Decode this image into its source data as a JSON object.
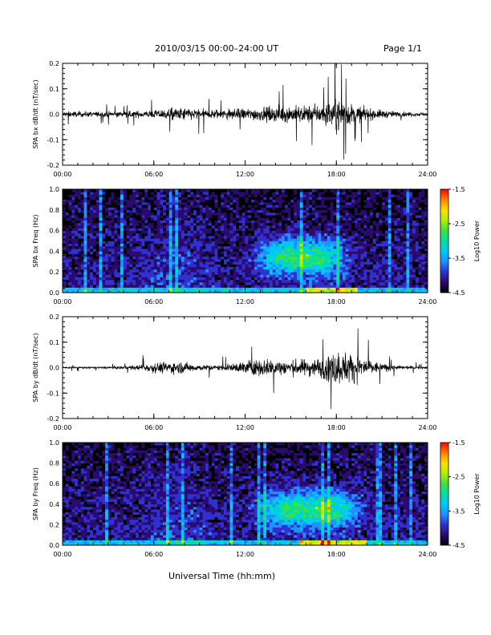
{
  "header": {
    "title": "2010/03/15  00:00–24:00 UT",
    "page": "Page 1/1"
  },
  "footer": {
    "xlabel": "Universal Time (hh:mm)"
  },
  "colors": {
    "trace": "#000000",
    "colorbar": [
      "#000000",
      "#2a0a6e",
      "#3030d0",
      "#1e90ff",
      "#00c8ff",
      "#00e0a0",
      "#40e040",
      "#b0f000",
      "#ffe000",
      "#ff8000",
      "#ff0000"
    ]
  },
  "chart_data": [
    {
      "type": "line",
      "ylabel": "SPA bx dB/dt (nT/sec)",
      "xlim": [
        0,
        24
      ],
      "ylim": [
        -0.2,
        0.2
      ],
      "xticks": [
        "00:00",
        "06:00",
        "12:00",
        "18:00",
        "24:00"
      ],
      "yticks": [
        "-0.2",
        "-0.1",
        "0.0",
        "0.1",
        "0.2"
      ],
      "envelope": {
        "x_hours": [
          0,
          2,
          4,
          6,
          7,
          8,
          9,
          10,
          11,
          12,
          13,
          14,
          15,
          16,
          17,
          18,
          19,
          20,
          21,
          22,
          24
        ],
        "amplitude": [
          0.035,
          0.03,
          0.035,
          0.045,
          0.07,
          0.08,
          0.06,
          0.06,
          0.065,
          0.07,
          0.08,
          0.09,
          0.1,
          0.1,
          0.11,
          0.2,
          0.12,
          0.07,
          0.05,
          0.03,
          0.02
        ]
      }
    },
    {
      "type": "heatmap",
      "ylabel": "SPA bx Freq (Hz)",
      "xlim": [
        0,
        24
      ],
      "ylim": [
        0,
        1
      ],
      "xticks": [
        "00:00",
        "06:00",
        "12:00",
        "18:00",
        "24:00"
      ],
      "yticks": [
        "0.0",
        "0.2",
        "0.4",
        "0.6",
        "0.8",
        "1.0"
      ],
      "colorbar": {
        "label": "Log10 Power",
        "range": [
          -4.5,
          -1.5
        ],
        "ticks": [
          "-1.5",
          "-2.5",
          "-3.5",
          "-4.5"
        ]
      },
      "activity": {
        "band_hz": [
          0.2,
          0.5
        ],
        "peak_hours": [
          13.5,
          18
        ],
        "strong_low_freq_hours": [
          16,
          19.5
        ]
      }
    },
    {
      "type": "line",
      "ylabel": "SPA by dB/dt (nT/sec)",
      "xlim": [
        0,
        24
      ],
      "ylim": [
        -0.2,
        0.2
      ],
      "xticks": [
        "00:00",
        "06:00",
        "12:00",
        "18:00",
        "24:00"
      ],
      "yticks": [
        "-0.2",
        "-0.1",
        "0.0",
        "0.1",
        "0.2"
      ],
      "envelope": {
        "x_hours": [
          0,
          2,
          4,
          5,
          6,
          7,
          8,
          9,
          10,
          11,
          12,
          13,
          14,
          15,
          16,
          17,
          18,
          19,
          20,
          21,
          22,
          24
        ],
        "amplitude": [
          0.012,
          0.01,
          0.015,
          0.03,
          0.06,
          0.07,
          0.065,
          0.035,
          0.03,
          0.04,
          0.08,
          0.1,
          0.1,
          0.085,
          0.1,
          0.12,
          0.2,
          0.18,
          0.1,
          0.05,
          0.025,
          0.012
        ]
      }
    },
    {
      "type": "heatmap",
      "ylabel": "SPA by Freq (Hz)",
      "xlim": [
        0,
        24
      ],
      "ylim": [
        0,
        1
      ],
      "xticks": [
        "00:00",
        "06:00",
        "12:00",
        "18:00",
        "24:00"
      ],
      "yticks": [
        "0.0",
        "0.2",
        "0.4",
        "0.6",
        "0.8",
        "1.0"
      ],
      "colorbar": {
        "label": "Log10 Power",
        "range": [
          -4.5,
          -1.5
        ],
        "ticks": [
          "-1.5",
          "-2.5",
          "-3.5",
          "-4.5"
        ]
      },
      "activity": {
        "band_hz": [
          0.2,
          0.5
        ],
        "peak_hours": [
          13.5,
          19
        ],
        "strong_low_freq_hours": [
          15.5,
          20
        ]
      }
    }
  ]
}
